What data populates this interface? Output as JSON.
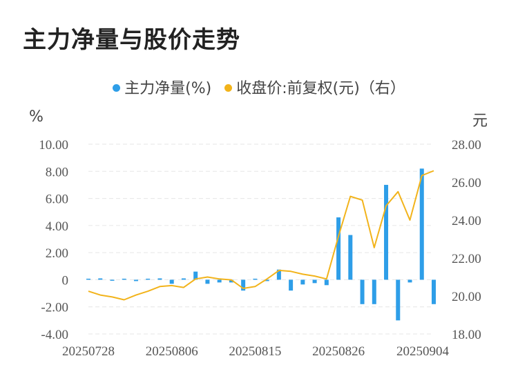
{
  "title": "主力净量与股价走势",
  "chart_data": {
    "type": "bar+line",
    "title": "主力净量与股价走势",
    "legend": {
      "placement": "top-center",
      "items": [
        {
          "label": "主力净量(%)",
          "color": "#2e9ee8"
        },
        {
          "label": "收盘价:前复权(元)（右）",
          "color": "#f2b31a"
        }
      ]
    },
    "left_axis": {
      "unit": "%",
      "min": -4,
      "max": 10,
      "ticks": [
        "-4.00",
        "-2.00",
        "0",
        "2.00",
        "4.00",
        "6.00",
        "8.00",
        "10.00"
      ]
    },
    "right_axis": {
      "unit": "元",
      "min": 18,
      "max": 28,
      "ticks": [
        "18.00",
        "20.00",
        "22.00",
        "24.00",
        "26.00",
        "28.00"
      ]
    },
    "x_tick_labels": [
      "20250728",
      "20250806",
      "20250815",
      "20250826",
      "20250904"
    ],
    "x_tick_index": [
      0,
      7,
      14,
      21,
      28
    ],
    "grid": "horizontal-dashed",
    "series": [
      {
        "name": "主力净量(%)",
        "kind": "bar",
        "color": "#2e9ee8",
        "values": [
          0.05,
          0.1,
          -0.05,
          0.05,
          -0.1,
          0,
          0.1,
          -0.3,
          0.1,
          0.6,
          -0.3,
          -0.2,
          -0.2,
          -0.8,
          0.05,
          -0.1,
          0.75,
          -0.8,
          -0.35,
          -0.25,
          -0.4,
          4.6,
          3.3,
          -1.8,
          -1.8,
          7.0,
          -3.0,
          -0.2,
          8.2,
          -1.8
        ]
      },
      {
        "name": "收盘价:前复权(元)（右）",
        "kind": "line",
        "color": "#f2b31a",
        "values": [
          20.25,
          20.05,
          19.95,
          19.8,
          20.05,
          20.25,
          20.5,
          20.55,
          20.45,
          20.9,
          21.0,
          20.9,
          20.85,
          20.4,
          20.5,
          20.9,
          21.35,
          21.3,
          21.15,
          21.05,
          20.9,
          23.15,
          25.25,
          25.05,
          22.55,
          24.75,
          25.5,
          24.0,
          26.35,
          26.6
        ]
      }
    ]
  }
}
